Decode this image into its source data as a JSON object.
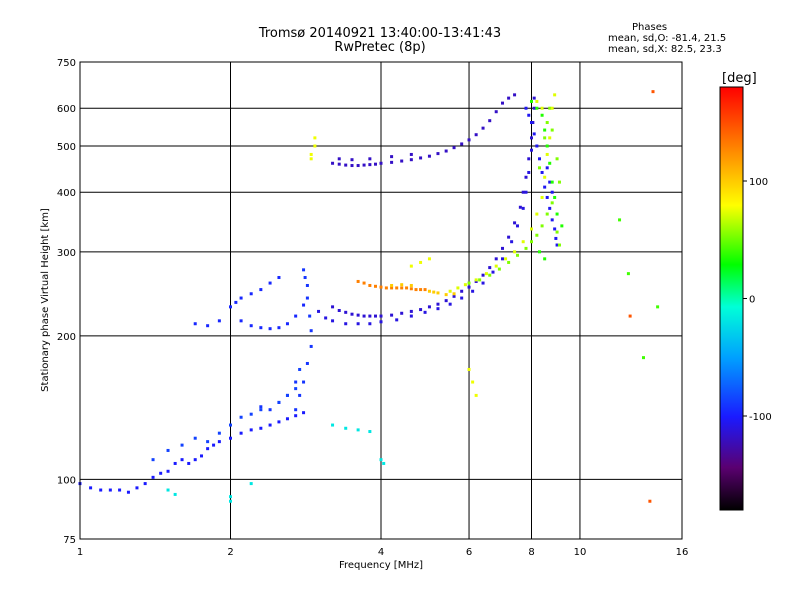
{
  "header": {
    "title_line1": "Tromsø 20140921 13:40:00-13:41:43",
    "title_line2": "RwPretec (8p)",
    "phase_title": "Phases",
    "phase_o": "mean, sd,O: -81.4, 21.5",
    "phase_x": "mean, sd,X:  82.5, 23.3"
  },
  "chart_data": {
    "type": "scatter",
    "title": "Tromsø 20140921 13:40:00-13:41:43",
    "subtitle": "RwPretec (8p)",
    "xlabel": "Frequency [MHz]",
    "ylabel": "Stationary phase Virtual Height [km]",
    "xscale": "log",
    "yscale": "log",
    "xlim": [
      1,
      16
    ],
    "ylim": [
      75,
      750
    ],
    "x_ticks": [
      1,
      2,
      4,
      6,
      8,
      10,
      16
    ],
    "x_tick_labels": [
      "1",
      "2",
      "4",
      "6",
      "8",
      "10",
      "16"
    ],
    "y_ticks": [
      75,
      100,
      200,
      300,
      400,
      500,
      600,
      750
    ],
    "y_tick_labels": [
      "75",
      "100",
      "200",
      "300",
      "400",
      "500",
      "600",
      "750"
    ],
    "grid": true,
    "colorbar": {
      "label": "[deg]",
      "range": [
        -180,
        180
      ],
      "ticks": [
        -100,
        0,
        100
      ],
      "tick_labels": [
        "-100",
        "0",
        "100"
      ]
    },
    "series": [
      {
        "name": "",
        "phase": -100,
        "points": [
          [
            1.0,
            98
          ],
          [
            1.05,
            96
          ],
          [
            1.1,
            95
          ],
          [
            1.15,
            95
          ],
          [
            1.2,
            95
          ],
          [
            1.25,
            94
          ],
          [
            1.3,
            96
          ],
          [
            1.35,
            98
          ],
          [
            1.4,
            101
          ],
          [
            1.45,
            103
          ],
          [
            1.5,
            104
          ],
          [
            1.55,
            108
          ],
          [
            1.6,
            110
          ],
          [
            1.65,
            108
          ],
          [
            1.7,
            110
          ],
          [
            1.75,
            112
          ],
          [
            1.8,
            116
          ],
          [
            1.85,
            118
          ],
          [
            1.9,
            120
          ],
          [
            2.0,
            122
          ],
          [
            2.1,
            125
          ],
          [
            2.2,
            127
          ],
          [
            2.3,
            128
          ],
          [
            2.4,
            130
          ],
          [
            2.5,
            132
          ],
          [
            2.6,
            134
          ],
          [
            2.7,
            136
          ],
          [
            2.8,
            138
          ]
        ]
      },
      {
        "name": "",
        "phase": -95,
        "points": [
          [
            2.0,
            230
          ],
          [
            2.05,
            235
          ],
          [
            2.1,
            240
          ],
          [
            2.2,
            245
          ],
          [
            2.3,
            250
          ],
          [
            2.4,
            258
          ],
          [
            2.5,
            265
          ],
          [
            2.1,
            215
          ],
          [
            2.2,
            210
          ],
          [
            2.3,
            208
          ],
          [
            2.4,
            207
          ],
          [
            2.5,
            208
          ],
          [
            2.6,
            212
          ],
          [
            2.7,
            220
          ],
          [
            2.8,
            232
          ],
          [
            1.7,
            212
          ],
          [
            1.8,
            210
          ],
          [
            1.9,
            215
          ]
        ]
      },
      {
        "name": "",
        "phase": -90,
        "points": [
          [
            2.7,
            140
          ],
          [
            2.75,
            150
          ],
          [
            2.8,
            160
          ],
          [
            2.85,
            175
          ],
          [
            2.9,
            190
          ],
          [
            2.9,
            205
          ],
          [
            2.88,
            220
          ],
          [
            2.85,
            240
          ],
          [
            2.85,
            255
          ],
          [
            2.82,
            265
          ],
          [
            2.8,
            275
          ],
          [
            2.7,
            160
          ],
          [
            2.6,
            150
          ],
          [
            2.5,
            145
          ],
          [
            2.4,
            140
          ],
          [
            2.3,
            142
          ]
        ]
      },
      {
        "name": "",
        "phase": -85,
        "points": [
          [
            1.4,
            110
          ],
          [
            1.5,
            115
          ],
          [
            1.6,
            118
          ],
          [
            1.7,
            122
          ],
          [
            1.8,
            120
          ],
          [
            1.9,
            125
          ],
          [
            2.0,
            130
          ],
          [
            2.1,
            135
          ],
          [
            2.2,
            137
          ],
          [
            2.3,
            140
          ],
          [
            2.5,
            145
          ],
          [
            2.6,
            150
          ],
          [
            2.7,
            155
          ],
          [
            2.75,
            170
          ]
        ]
      },
      {
        "name": "",
        "phase": -115,
        "points": [
          [
            3.2,
            230
          ],
          [
            3.3,
            226
          ],
          [
            3.4,
            224
          ],
          [
            3.5,
            222
          ],
          [
            3.6,
            221
          ],
          [
            3.7,
            220
          ],
          [
            3.8,
            220
          ],
          [
            3.9,
            220
          ],
          [
            4.0,
            220
          ],
          [
            4.2,
            221
          ],
          [
            4.4,
            223
          ],
          [
            4.6,
            225
          ],
          [
            4.8,
            227
          ],
          [
            5.0,
            230
          ],
          [
            5.2,
            233
          ],
          [
            5.4,
            237
          ],
          [
            5.6,
            242
          ],
          [
            5.8,
            248
          ],
          [
            6.0,
            253
          ],
          [
            6.2,
            260
          ],
          [
            6.4,
            268
          ],
          [
            6.6,
            278
          ],
          [
            6.8,
            290
          ],
          [
            7.0,
            305
          ],
          [
            7.2,
            322
          ],
          [
            7.4,
            345
          ],
          [
            7.6,
            372
          ],
          [
            7.7,
            400
          ],
          [
            7.8,
            430
          ],
          [
            7.9,
            470
          ],
          [
            8.0,
            520
          ],
          [
            8.05,
            560
          ],
          [
            8.1,
            600
          ],
          [
            8.1,
            630
          ]
        ]
      },
      {
        "name": "",
        "phase": -110,
        "points": [
          [
            3.2,
            215
          ],
          [
            3.4,
            212
          ],
          [
            3.6,
            212
          ],
          [
            3.8,
            212
          ],
          [
            4.0,
            214
          ],
          [
            4.3,
            216
          ],
          [
            4.6,
            220
          ],
          [
            4.9,
            224
          ],
          [
            5.2,
            228
          ],
          [
            5.5,
            233
          ],
          [
            5.8,
            240
          ],
          [
            6.1,
            248
          ],
          [
            6.4,
            258
          ],
          [
            6.7,
            272
          ],
          [
            7.0,
            290
          ],
          [
            7.3,
            315
          ],
          [
            7.5,
            340
          ],
          [
            7.7,
            370
          ],
          [
            7.8,
            400
          ],
          [
            7.9,
            440
          ],
          [
            8.0,
            490
          ],
          [
            3.0,
            225
          ],
          [
            3.1,
            218
          ]
        ]
      },
      {
        "name": "",
        "phase": -120,
        "points": [
          [
            3.2,
            460
          ],
          [
            3.3,
            458
          ],
          [
            3.4,
            456
          ],
          [
            3.5,
            455
          ],
          [
            3.6,
            455
          ],
          [
            3.7,
            456
          ],
          [
            3.8,
            457
          ],
          [
            3.9,
            458
          ],
          [
            4.0,
            460
          ],
          [
            4.2,
            462
          ],
          [
            4.4,
            465
          ],
          [
            4.6,
            468
          ],
          [
            4.8,
            472
          ],
          [
            5.0,
            476
          ],
          [
            5.2,
            482
          ],
          [
            5.4,
            488
          ],
          [
            5.6,
            496
          ],
          [
            5.8,
            505
          ],
          [
            6.0,
            515
          ],
          [
            6.2,
            528
          ],
          [
            6.4,
            545
          ],
          [
            6.6,
            565
          ],
          [
            6.8,
            590
          ],
          [
            7.0,
            615
          ],
          [
            7.2,
            630
          ],
          [
            7.4,
            640
          ],
          [
            3.3,
            470
          ],
          [
            3.5,
            468
          ],
          [
            3.8,
            470
          ],
          [
            4.2,
            475
          ],
          [
            4.6,
            480
          ]
        ]
      },
      {
        "name": "",
        "phase": -105,
        "points": [
          [
            7.8,
            600
          ],
          [
            7.9,
            580
          ],
          [
            8.0,
            560
          ],
          [
            8.1,
            530
          ],
          [
            8.2,
            500
          ],
          [
            8.3,
            470
          ],
          [
            8.4,
            440
          ],
          [
            8.5,
            410
          ],
          [
            8.6,
            390
          ],
          [
            8.7,
            370
          ],
          [
            8.8,
            350
          ],
          [
            8.9,
            335
          ],
          [
            8.95,
            320
          ],
          [
            9.0,
            310
          ],
          [
            8.6,
            450
          ],
          [
            8.7,
            420
          ],
          [
            8.8,
            400
          ]
        ]
      },
      {
        "name": "",
        "phase": 60,
        "points": [
          [
            6.0,
            258
          ],
          [
            6.3,
            262
          ],
          [
            6.6,
            268
          ],
          [
            6.9,
            276
          ],
          [
            7.2,
            285
          ],
          [
            7.5,
            295
          ],
          [
            7.8,
            305
          ],
          [
            8.0,
            315
          ],
          [
            8.2,
            325
          ],
          [
            8.4,
            340
          ],
          [
            8.6,
            360
          ],
          [
            8.8,
            380
          ],
          [
            9.0,
            330
          ],
          [
            9.1,
            310
          ],
          [
            8.3,
            450
          ],
          [
            8.5,
            520
          ],
          [
            8.6,
            560
          ],
          [
            8.7,
            600
          ],
          [
            8.8,
            540
          ],
          [
            9.0,
            470
          ],
          [
            9.1,
            420
          ]
        ]
      },
      {
        "name": "",
        "phase": 90,
        "points": [
          [
            5.5,
            248
          ],
          [
            5.7,
            252
          ],
          [
            5.9,
            256
          ],
          [
            6.2,
            262
          ],
          [
            6.5,
            270
          ],
          [
            6.8,
            280
          ],
          [
            7.1,
            290
          ],
          [
            7.4,
            300
          ],
          [
            7.7,
            315
          ],
          [
            8.0,
            335
          ],
          [
            8.2,
            360
          ],
          [
            8.4,
            390
          ],
          [
            8.5,
            430
          ],
          [
            8.6,
            480
          ],
          [
            8.7,
            520
          ],
          [
            8.8,
            600
          ],
          [
            8.9,
            640
          ],
          [
            8.2,
            620
          ],
          [
            8.4,
            600
          ]
        ]
      },
      {
        "name": "",
        "phase": 30,
        "points": [
          [
            8.0,
            620
          ],
          [
            8.2,
            600
          ],
          [
            8.4,
            580
          ],
          [
            8.5,
            540
          ],
          [
            8.6,
            500
          ],
          [
            8.7,
            460
          ],
          [
            8.8,
            420
          ],
          [
            8.9,
            390
          ],
          [
            9.0,
            360
          ],
          [
            9.2,
            340
          ],
          [
            8.3,
            300
          ],
          [
            8.5,
            290
          ]
        ]
      },
      {
        "name": "",
        "phase": 150,
        "points": [
          [
            3.6,
            260
          ],
          [
            3.7,
            258
          ],
          [
            3.8,
            255
          ],
          [
            3.9,
            254
          ],
          [
            4.0,
            253
          ],
          [
            4.1,
            252
          ],
          [
            4.2,
            252
          ],
          [
            4.3,
            252
          ],
          [
            4.4,
            252
          ],
          [
            4.5,
            252
          ],
          [
            4.6,
            251
          ],
          [
            4.7,
            250
          ],
          [
            4.8,
            250
          ],
          [
            4.9,
            250
          ]
        ]
      },
      {
        "name": "",
        "phase": 120,
        "points": [
          [
            5.0,
            248
          ],
          [
            5.1,
            247
          ],
          [
            5.2,
            246
          ],
          [
            5.4,
            244
          ],
          [
            5.6,
            245
          ],
          [
            4.2,
            255
          ],
          [
            4.4,
            256
          ],
          [
            4.6,
            255
          ]
        ]
      },
      {
        "name": "",
        "phase": -20,
        "points": [
          [
            3.2,
            130
          ],
          [
            3.4,
            128
          ],
          [
            3.6,
            127
          ],
          [
            3.8,
            126
          ],
          [
            4.0,
            110
          ],
          [
            4.05,
            108
          ],
          [
            1.5,
            95
          ],
          [
            1.55,
            93
          ],
          [
            2.0,
            92
          ],
          [
            2.0,
            90
          ],
          [
            2.2,
            98
          ]
        ]
      },
      {
        "name": "",
        "phase": 95,
        "points": [
          [
            2.95,
            520
          ],
          [
            2.95,
            500
          ],
          [
            2.9,
            480
          ],
          [
            2.9,
            470
          ],
          [
            6.0,
            170
          ],
          [
            6.1,
            160
          ],
          [
            6.2,
            150
          ],
          [
            4.6,
            280
          ],
          [
            4.8,
            285
          ],
          [
            5.0,
            290
          ]
        ]
      },
      {
        "name": "",
        "phase": 160,
        "points": [
          [
            12.6,
            220
          ],
          [
            14.0,
            650
          ],
          [
            13.8,
            90
          ]
        ]
      },
      {
        "name": "",
        "phase": 40,
        "points": [
          [
            12.5,
            270
          ],
          [
            14.3,
            230
          ],
          [
            12.0,
            350
          ],
          [
            13.4,
            180
          ]
        ]
      }
    ]
  }
}
